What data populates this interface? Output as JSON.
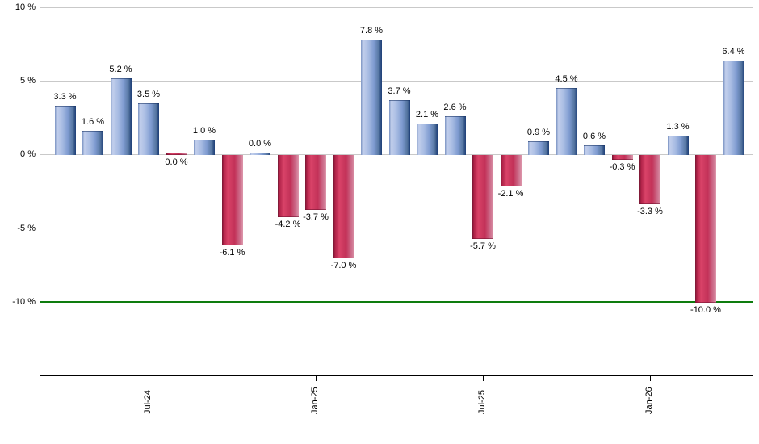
{
  "chart_data": {
    "type": "bar",
    "title": "",
    "xlabel": "",
    "ylabel": "",
    "values": [
      3.3,
      1.6,
      5.2,
      3.5,
      0.0,
      1.0,
      -6.1,
      0.0,
      -4.2,
      -3.7,
      -7.0,
      7.8,
      3.7,
      2.1,
      2.6,
      -5.7,
      -2.1,
      0.9,
      4.5,
      0.6,
      -0.3,
      -3.3,
      1.3,
      -10.0,
      6.4
    ],
    "bar_directions": [
      "pos",
      "pos",
      "pos",
      "pos",
      "neg",
      "pos",
      "neg",
      "pos",
      "neg",
      "neg",
      "neg",
      "pos",
      "pos",
      "pos",
      "pos",
      "neg",
      "neg",
      "pos",
      "pos",
      "pos",
      "neg",
      "neg",
      "pos",
      "neg",
      "pos"
    ],
    "value_labels": [
      "3.3 %",
      "1.6 %",
      "5.2 %",
      "3.5 %",
      "0.0 %",
      "1.0 %",
      "-6.1 %",
      "0.0 %",
      "-4.2 %",
      "-3.7 %",
      "-7.0 %",
      "7.8 %",
      "3.7 %",
      "2.1 %",
      "2.6 %",
      "-5.7 %",
      "-2.1 %",
      "0.9 %",
      "4.5 %",
      "0.6 %",
      "-0.3 %",
      "-3.3 %",
      "1.3 %",
      "-10.0 %",
      "6.4 %"
    ],
    "y_axis": {
      "ticks": [
        10,
        5,
        0,
        -5,
        -10
      ],
      "tick_labels": [
        "10 %",
        "5 %",
        "0 %",
        "-5 %",
        "-10 %"
      ],
      "range": [
        -15,
        10
      ],
      "grid": true
    },
    "x_axis": {
      "tick_labels": [
        {
          "label": "Jul-24",
          "index": 3
        },
        {
          "label": "Jan-25",
          "index": 9
        },
        {
          "label": "Jul-25",
          "index": 15
        },
        {
          "label": "Jan-26",
          "index": 21
        }
      ]
    },
    "threshold_line": {
      "value": -10,
      "color": "#0e7c0e"
    },
    "legend": null,
    "colors": {
      "positive_bar": "#7e9bd0",
      "positive_bar_edge": "#24457c",
      "negative_bar": "#c23158",
      "negative_bar_edge": "#731733",
      "grid": "#c9c9c9",
      "axis": "#000000",
      "label_text": "#000000",
      "background": "#ffffff"
    }
  }
}
